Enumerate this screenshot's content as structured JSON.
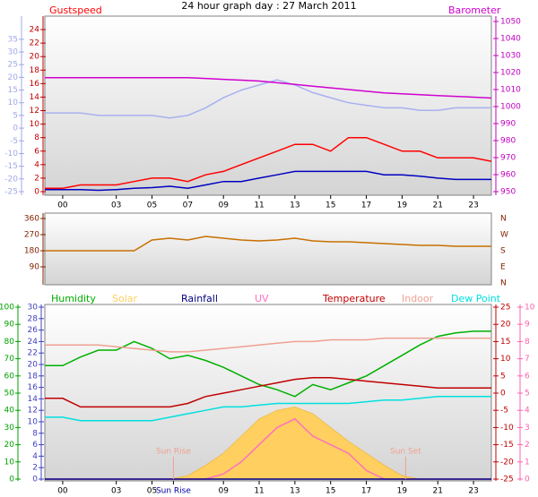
{
  "chart_data": [
    {
      "type": "line",
      "title": "24 hour graph day : 27 March 2011",
      "x": [
        -1,
        0,
        1,
        2,
        3,
        4,
        5,
        6,
        7,
        8,
        9,
        10,
        11,
        12,
        13,
        14,
        15,
        16,
        17,
        18,
        19,
        20,
        21,
        22,
        23,
        24
      ],
      "xlim": [
        -1,
        24
      ],
      "xticks": [
        {
          "value": 0,
          "label": "00"
        },
        {
          "value": 3,
          "label": "03"
        },
        {
          "value": 5,
          "label": "05"
        },
        {
          "value": 7,
          "label": "07"
        },
        {
          "value": 9,
          "label": "09"
        },
        {
          "value": 11,
          "label": "11"
        },
        {
          "value": 13,
          "label": "13"
        },
        {
          "value": 15,
          "label": "15"
        },
        {
          "value": 17,
          "label": "17"
        },
        {
          "value": 19,
          "label": "19"
        },
        {
          "value": 21,
          "label": "21"
        },
        {
          "value": 23,
          "label": "23"
        }
      ],
      "ylim": [
        0,
        25.2
      ],
      "yticks": [
        0,
        2,
        4,
        6,
        8,
        10,
        12,
        14,
        16,
        18,
        20,
        22,
        24
      ],
      "y2lim": [
        950,
        1050
      ],
      "y2ticks": [
        950,
        960,
        970,
        980,
        990,
        1000,
        1010,
        1020,
        1030,
        1040,
        1050
      ],
      "y3lim": [
        -25,
        42
      ],
      "y3ticks": [
        -25,
        -20,
        -15,
        -10,
        -5,
        0,
        5,
        10,
        15,
        20,
        25,
        30,
        35
      ],
      "axis_colors": {
        "y": "#c00000",
        "y2": "#c000c0",
        "y3": "#a0a8e8"
      },
      "series": [
        {
          "color": "#a8b0f0",
          "axis": "y3",
          "values": [
            6,
            6,
            6,
            5,
            5,
            5,
            5,
            4,
            5,
            8,
            12,
            15,
            17,
            19,
            17,
            14,
            12,
            10,
            9,
            8,
            8,
            7,
            7,
            8,
            8,
            8
          ]
        },
        {
          "name": "Barometer",
          "color": "#d000d0",
          "axis": "y2",
          "values": [
            1017,
            1017,
            1017,
            1017,
            1017,
            1017,
            1017,
            1017,
            1017,
            1016.5,
            1016,
            1015.5,
            1015,
            1014,
            1013,
            1012,
            1011,
            1010,
            1009,
            1008,
            1007.5,
            1007,
            1006.5,
            1006,
            1005.5,
            1005
          ]
        },
        {
          "name": "Gustspeed",
          "color": "#ff0000",
          "axis": "y",
          "values": [
            0.5,
            0.5,
            1,
            1,
            1,
            1.5,
            2,
            2,
            1.5,
            2.5,
            3,
            4,
            5,
            6,
            7,
            7,
            6,
            8,
            8,
            7,
            6,
            6,
            5,
            5,
            5,
            4.5
          ]
        },
        {
          "color": "#0000c0",
          "axis": "y",
          "values": [
            0.3,
            0.3,
            0.3,
            0.2,
            0.3,
            0.5,
            0.6,
            0.8,
            0.5,
            1,
            1.5,
            1.5,
            2,
            2.5,
            3,
            3,
            3,
            3,
            3,
            2.5,
            2.5,
            2.3,
            2,
            1.8,
            1.8,
            1.8
          ]
        }
      ]
    },
    {
      "type": "line",
      "x": [
        -1,
        0,
        1,
        2,
        3,
        4,
        5,
        6,
        7,
        8,
        9,
        10,
        11,
        12,
        13,
        14,
        15,
        16,
        17,
        18,
        19,
        20,
        21,
        22,
        23,
        24
      ],
      "xlim": [
        -1,
        24
      ],
      "ylim": [
        0,
        360
      ],
      "yticks": [
        90,
        180,
        270,
        360
      ],
      "y2lim": [
        0,
        360
      ],
      "y2ticks": [
        {
          "value": 0,
          "label": "N"
        },
        {
          "value": 90,
          "label": "E"
        },
        {
          "value": 180,
          "label": "S"
        },
        {
          "value": 270,
          "label": "W"
        },
        {
          "value": 360,
          "label": "N"
        }
      ],
      "axis_colors": {
        "y": "#802000",
        "y2": "#802000"
      },
      "series": [
        {
          "color": "#c87000",
          "axis": "y",
          "values": [
            180,
            180,
            180,
            180,
            180,
            180,
            240,
            250,
            240,
            260,
            250,
            240,
            235,
            240,
            250,
            235,
            230,
            230,
            225,
            220,
            215,
            210,
            210,
            205,
            205,
            205
          ]
        }
      ]
    },
    {
      "type": "line",
      "x": [
        -1,
        0,
        1,
        2,
        3,
        4,
        5,
        6,
        7,
        8,
        9,
        10,
        11,
        12,
        13,
        14,
        15,
        16,
        17,
        18,
        19,
        20,
        21,
        22,
        23,
        24
      ],
      "xlim": [
        -1,
        24
      ],
      "xticks": [
        {
          "value": 0,
          "label": "00"
        },
        {
          "value": 3,
          "label": "03"
        },
        {
          "value": 5,
          "label": "05"
        },
        {
          "value": 6.2,
          "label": "Sun Rise",
          "color": "#0000a0"
        },
        {
          "value": 9,
          "label": "09"
        },
        {
          "value": 11,
          "label": "11"
        },
        {
          "value": 13,
          "label": "13"
        },
        {
          "value": 15,
          "label": "15"
        },
        {
          "value": 17,
          "label": "17"
        },
        {
          "value": 19,
          "label": "19"
        },
        {
          "value": 21,
          "label": "21"
        },
        {
          "value": 23,
          "label": "23"
        }
      ],
      "ylim": [
        0,
        100
      ],
      "yticks": [
        0,
        10,
        20,
        30,
        40,
        50,
        60,
        70,
        80,
        90,
        100
      ],
      "y2lim": [
        -25,
        25
      ],
      "y2ticks": [
        -25,
        -20,
        -15,
        -10,
        -5,
        0,
        5,
        10,
        15,
        20,
        25
      ],
      "y3lim": [
        0,
        30
      ],
      "y3ticks": [
        0,
        2,
        4,
        6,
        8,
        10,
        12,
        14,
        16,
        18,
        20,
        22,
        24,
        26,
        28,
        30
      ],
      "y4lim": [
        0,
        10
      ],
      "y4ticks": [
        0,
        1,
        2,
        3,
        4,
        5,
        6,
        7,
        8,
        9,
        10
      ],
      "axis_colors": {
        "y": "#00a000",
        "y2": "#c00000",
        "y3": "#4040c0",
        "y4": "#ff60b0"
      },
      "annotations": [
        {
          "text": "Sun Rise",
          "x": 6.2
        },
        {
          "text": "Sun Set",
          "x": 19.2
        }
      ],
      "series": [
        {
          "name": "Solar",
          "color": "#ffd060",
          "fill": true,
          "axis": "y",
          "values": [
            0,
            0,
            0,
            0,
            0,
            0,
            0,
            0,
            2,
            8,
            15,
            25,
            35,
            40,
            42,
            38,
            30,
            22,
            15,
            8,
            2,
            0,
            0,
            0,
            0,
            0
          ]
        },
        {
          "name": "UV",
          "color": "#ff70c0",
          "axis": "y4",
          "values": [
            0,
            0,
            0,
            0,
            0,
            0,
            0,
            0,
            0,
            0,
            0.3,
            1,
            2,
            3,
            3.5,
            2.5,
            2,
            1.5,
            0.5,
            0,
            0,
            0,
            0,
            0,
            0,
            0
          ]
        },
        {
          "name": "Humidity",
          "color": "#00b000",
          "axis": "y",
          "values": [
            66,
            66,
            71,
            75,
            75,
            80,
            76,
            70,
            72,
            69,
            65,
            60,
            55,
            52,
            48,
            55,
            52,
            56,
            60,
            66,
            72,
            78,
            83,
            85,
            86,
            86
          ]
        },
        {
          "name": "Indoor",
          "color": "#f0a090",
          "axis": "y2",
          "values": [
            14,
            14,
            14,
            14,
            13.5,
            13,
            12.5,
            12,
            12,
            12.5,
            13,
            13.5,
            14,
            14.5,
            15,
            15,
            15.5,
            15.5,
            15.5,
            16,
            16,
            16,
            16,
            16,
            16,
            16
          ]
        },
        {
          "name": "Temperature",
          "color": "#c00000",
          "axis": "y2",
          "values": [
            -1.5,
            -1.5,
            -4,
            -4,
            -4,
            -4,
            -4,
            -4,
            -3,
            -1,
            0,
            1,
            2,
            3,
            4,
            4.5,
            4.5,
            4,
            3.5,
            3,
            2.5,
            2,
            1.5,
            1.5,
            1.5,
            1.5
          ]
        },
        {
          "name": "Dew Point",
          "color": "#00e0e0",
          "axis": "y2",
          "values": [
            -7,
            -7,
            -8,
            -8,
            -8,
            -8,
            -8,
            -7,
            -6,
            -5,
            -4,
            -4,
            -3.5,
            -3,
            -3,
            -3,
            -3,
            -3,
            -2.5,
            -2,
            -2,
            -1.5,
            -1,
            -1,
            -1,
            -1
          ]
        },
        {
          "name": "Rainfall",
          "color": "#000080",
          "axis": "y3",
          "values": [
            0,
            0,
            0,
            0,
            0,
            0,
            0,
            0,
            0,
            0,
            0,
            0,
            0,
            0,
            0,
            0,
            0,
            0,
            0,
            0,
            0,
            0,
            0,
            0,
            0,
            0
          ]
        }
      ]
    }
  ]
}
